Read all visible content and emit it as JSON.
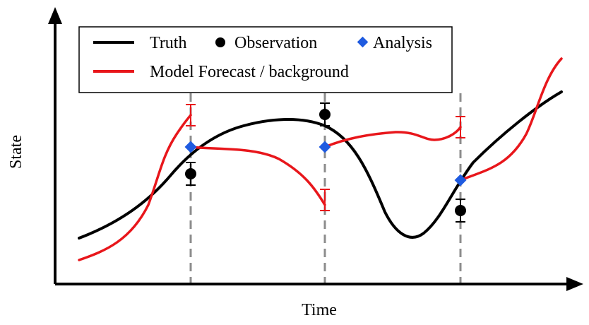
{
  "axes": {
    "x_label": "Time",
    "y_label": "State"
  },
  "legend": {
    "truth": "Truth",
    "observation": "Observation",
    "analysis": "Analysis",
    "forecast": "Model Forecast / background"
  },
  "colors": {
    "truth": "#000000",
    "observation": "#000000",
    "analysis": "#1f5be0",
    "forecast": "#e8161b",
    "dashed": "#8c8c8c"
  }
}
